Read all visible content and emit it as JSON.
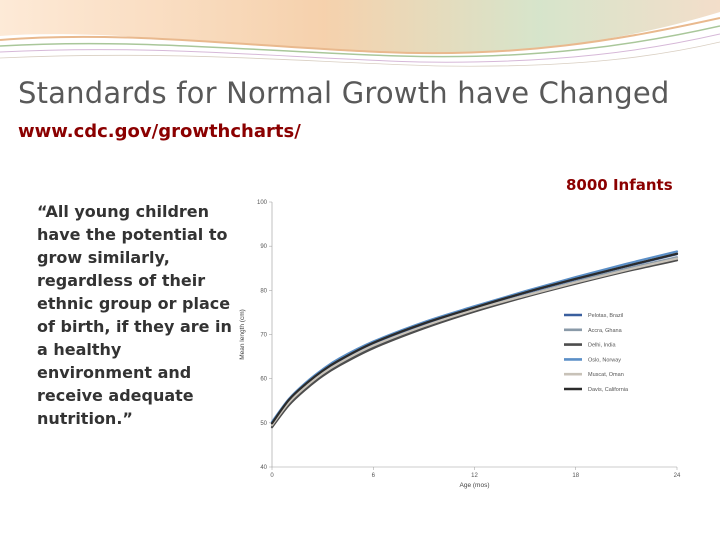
{
  "slide": {
    "title": "Standards for Normal Growth have Changed",
    "url": "www.cdc.gov/growthcharts/",
    "quote": "“All young children have the potential to grow similarly, regardless of their ethnic group or place of birth, if they are in a healthy environment and receive adequate nutrition.”",
    "chart_caption": "8000 Infants"
  },
  "colors": {
    "title": "#595959",
    "url": "#8b0000",
    "caption": "#8b0000",
    "quote": "#333333"
  },
  "chart_data": {
    "type": "line",
    "title": "",
    "xlabel": "Age (mos)",
    "ylabel": "Mean length (cm)",
    "xlim": [
      0,
      24
    ],
    "ylim": [
      40,
      100
    ],
    "xticks": [
      0,
      6,
      12,
      18,
      24
    ],
    "yticks": [
      40,
      50,
      60,
      70,
      80,
      90,
      100
    ],
    "grid": false,
    "legend_position": "right",
    "x": [
      0,
      1,
      2,
      3,
      4,
      6,
      9,
      12,
      15,
      18,
      21,
      24
    ],
    "series": [
      {
        "name": "Pelotas, Brazil",
        "color": "#3a5f9e",
        "values": [
          49.8,
          55.0,
          58.6,
          61.6,
          64.0,
          67.9,
          72.3,
          76.0,
          79.4,
          82.5,
          85.4,
          88.2
        ]
      },
      {
        "name": "Accra, Ghana",
        "color": "#8a9aa8",
        "values": [
          49.3,
          54.4,
          58.0,
          61.0,
          63.4,
          67.3,
          71.8,
          75.6,
          78.9,
          82.0,
          84.9,
          87.5
        ]
      },
      {
        "name": "Delhi, India",
        "color": "#4d4d4d",
        "values": [
          49.0,
          54.0,
          57.6,
          60.6,
          63.0,
          66.9,
          71.4,
          75.2,
          78.5,
          81.5,
          84.3,
          86.8
        ]
      },
      {
        "name": "Oslo, Norway",
        "color": "#5b8fc7",
        "values": [
          50.2,
          55.4,
          59.1,
          62.1,
          64.6,
          68.4,
          72.8,
          76.4,
          79.8,
          83.0,
          86.0,
          88.8
        ]
      },
      {
        "name": "Muscat, Oman",
        "color": "#c8c2b8",
        "values": [
          49.5,
          54.6,
          58.2,
          61.2,
          63.6,
          67.5,
          71.9,
          75.6,
          78.8,
          81.8,
          84.6,
          87.2
        ]
      },
      {
        "name": "Davis, California",
        "color": "#2b2b2b",
        "values": [
          49.9,
          55.2,
          58.8,
          61.8,
          64.2,
          68.1,
          72.5,
          76.1,
          79.5,
          82.6,
          85.5,
          88.3
        ]
      }
    ]
  }
}
